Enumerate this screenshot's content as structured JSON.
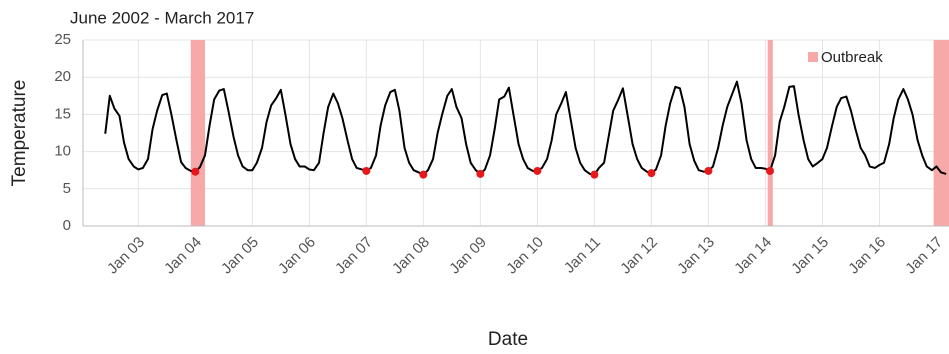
{
  "chart_data": {
    "type": "line",
    "title": "June 2002 - March 2017",
    "x_label": "Date",
    "y_label": "Temperature",
    "xlim": [
      2002.03,
      2017.22
    ],
    "ylim": [
      0,
      25
    ],
    "yticks": [
      0,
      5,
      10,
      15,
      20,
      25
    ],
    "xticks": [
      {
        "value": 2003,
        "label": "Jan 03"
      },
      {
        "value": 2004,
        "label": "Jan 04"
      },
      {
        "value": 2005,
        "label": "Jan 05"
      },
      {
        "value": 2006,
        "label": "Jan 06"
      },
      {
        "value": 2007,
        "label": "Jan 07"
      },
      {
        "value": 2008,
        "label": "Jan 08"
      },
      {
        "value": 2009,
        "label": "Jan 09"
      },
      {
        "value": 2010,
        "label": "Jan 10"
      },
      {
        "value": 2011,
        "label": "Jan 11"
      },
      {
        "value": 2012,
        "label": "Jan 12"
      },
      {
        "value": 2013,
        "label": "Jan 13"
      },
      {
        "value": 2014,
        "label": "Jan 14"
      },
      {
        "value": 2015,
        "label": "Jan 15"
      },
      {
        "value": 2016,
        "label": "Jan 16"
      },
      {
        "value": 2017,
        "label": "Jan 17"
      }
    ],
    "grid": true,
    "legend_position": "upper right",
    "outbreak": {
      "name": "Outbreak",
      "color": "#f7a8a8",
      "periods": [
        {
          "start": 2003.92,
          "end": 2004.17
        },
        {
          "start": 2014.04,
          "end": 2014.13
        },
        {
          "start": 2016.95,
          "end": 2017.22
        }
      ]
    },
    "line_color": "#000000",
    "x": [
      2002.42,
      2002.5,
      2002.58,
      2002.67,
      2002.75,
      2002.83,
      2002.92,
      2003,
      2003.08,
      2003.17,
      2003.25,
      2003.33,
      2003.42,
      2003.5,
      2003.58,
      2003.67,
      2003.75,
      2003.83,
      2003.92,
      2004,
      2004.08,
      2004.17,
      2004.25,
      2004.33,
      2004.42,
      2004.5,
      2004.58,
      2004.67,
      2004.75,
      2004.83,
      2004.92,
      2005,
      2005.08,
      2005.17,
      2005.25,
      2005.33,
      2005.42,
      2005.5,
      2005.58,
      2005.67,
      2005.75,
      2005.83,
      2005.92,
      2006,
      2006.08,
      2006.17,
      2006.25,
      2006.33,
      2006.42,
      2006.5,
      2006.58,
      2006.67,
      2006.75,
      2006.83,
      2006.92,
      2007,
      2007.08,
      2007.17,
      2007.25,
      2007.33,
      2007.42,
      2007.5,
      2007.58,
      2007.67,
      2007.75,
      2007.83,
      2007.92,
      2008,
      2008.08,
      2008.17,
      2008.25,
      2008.33,
      2008.42,
      2008.5,
      2008.58,
      2008.67,
      2008.75,
      2008.83,
      2008.92,
      2009,
      2009.08,
      2009.17,
      2009.25,
      2009.33,
      2009.42,
      2009.5,
      2009.58,
      2009.67,
      2009.75,
      2009.83,
      2009.92,
      2010,
      2010.08,
      2010.17,
      2010.25,
      2010.33,
      2010.42,
      2010.5,
      2010.58,
      2010.67,
      2010.75,
      2010.83,
      2010.92,
      2011,
      2011.08,
      2011.17,
      2011.25,
      2011.33,
      2011.42,
      2011.5,
      2011.58,
      2011.67,
      2011.75,
      2011.83,
      2011.92,
      2012,
      2012.08,
      2012.17,
      2012.25,
      2012.33,
      2012.42,
      2012.5,
      2012.58,
      2012.67,
      2012.75,
      2012.83,
      2012.92,
      2013,
      2013.08,
      2013.17,
      2013.25,
      2013.33,
      2013.42,
      2013.5,
      2013.58,
      2013.67,
      2013.75,
      2013.83,
      2013.92,
      2014,
      2014.08,
      2014.17,
      2014.25,
      2014.33,
      2014.42,
      2014.5,
      2014.58,
      2014.67,
      2014.75,
      2014.83,
      2014.92,
      2015,
      2015.08,
      2015.17,
      2015.25,
      2015.33,
      2015.42,
      2015.5,
      2015.58,
      2015.67,
      2015.75,
      2015.83,
      2015.92,
      2016,
      2016.08,
      2016.17,
      2016.25,
      2016.33,
      2016.42,
      2016.5,
      2016.58,
      2016.67,
      2016.75,
      2016.83,
      2016.92,
      2017,
      2017.08,
      2017.17
    ],
    "values": [
      12.4,
      17.5,
      15.8,
      14.8,
      11.2,
      9.0,
      8.0,
      7.6,
      7.8,
      9.0,
      13.0,
      15.5,
      17.6,
      17.8,
      15.0,
      11.5,
      8.6,
      7.8,
      7.4,
      7.3,
      7.9,
      9.5,
      13.5,
      17.0,
      18.2,
      18.4,
      15.5,
      12.0,
      9.5,
      8.0,
      7.5,
      7.5,
      8.5,
      10.5,
      14.0,
      16.2,
      17.2,
      18.3,
      15.0,
      11.0,
      9.0,
      8.0,
      8.0,
      7.6,
      7.5,
      8.5,
      12.5,
      16.0,
      17.8,
      16.5,
      14.5,
      11.5,
      9.0,
      7.8,
      7.6,
      7.4,
      7.8,
      9.5,
      13.5,
      16.2,
      18.0,
      18.3,
      15.5,
      10.5,
      8.5,
      7.5,
      7.2,
      6.9,
      7.5,
      9.0,
      12.5,
      15.0,
      17.5,
      18.4,
      16.0,
      14.5,
      11.0,
      8.5,
      7.5,
      7.0,
      7.6,
      9.5,
      13.0,
      17.0,
      17.4,
      18.6,
      15.0,
      11.0,
      9.0,
      7.8,
      7.4,
      7.4,
      7.8,
      9.0,
      11.5,
      15.0,
      16.5,
      18.0,
      14.5,
      10.5,
      8.5,
      7.5,
      7.0,
      6.9,
      7.8,
      8.5,
      12.0,
      15.5,
      17.0,
      18.5,
      15.0,
      11.0,
      9.0,
      7.8,
      7.3,
      7.1,
      7.6,
      9.5,
      13.5,
      16.5,
      18.7,
      18.5,
      16.0,
      11.0,
      8.8,
      7.5,
      7.3,
      7.4,
      8.0,
      10.5,
      13.5,
      16.0,
      17.8,
      19.4,
      16.5,
      11.5,
      9.0,
      7.8,
      7.8,
      7.7,
      7.4,
      9.5,
      14.0,
      16.0,
      18.7,
      18.8,
      15.0,
      11.5,
      9.0,
      8.0,
      8.5,
      9.0,
      10.5,
      13.5,
      16.0,
      17.2,
      17.4,
      15.5,
      13.0,
      10.5,
      9.5,
      8.0,
      7.8,
      8.2,
      8.5,
      11.0,
      14.5,
      17.0,
      18.4,
      17.0,
      15.0,
      11.5,
      9.5,
      8.0,
      7.5,
      8.0,
      7.2,
      7.0
    ],
    "markers": {
      "color": "#e8171b",
      "x": [
        2004,
        2007,
        2008,
        2009,
        2010,
        2011,
        2012,
        2013,
        2014.08
      ],
      "values": [
        7.3,
        7.4,
        6.9,
        7.0,
        7.4,
        6.9,
        7.1,
        7.4,
        7.4
      ]
    }
  }
}
